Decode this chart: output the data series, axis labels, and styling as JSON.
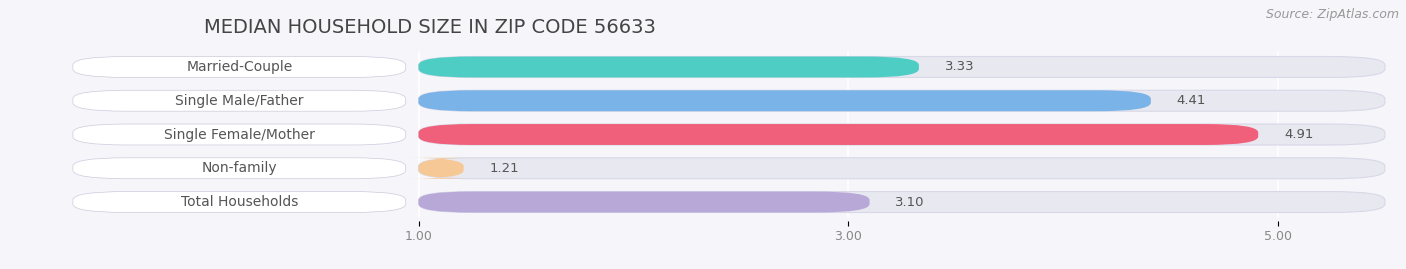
{
  "title": "MEDIAN HOUSEHOLD SIZE IN ZIP CODE 56633",
  "source": "Source: ZipAtlas.com",
  "categories": [
    "Married-Couple",
    "Single Male/Father",
    "Single Female/Mother",
    "Non-family",
    "Total Households"
  ],
  "values": [
    3.33,
    4.41,
    4.91,
    1.21,
    3.1
  ],
  "bar_colors": [
    "#4ecdc4",
    "#7ab3e8",
    "#f0607a",
    "#f5c896",
    "#b8a8d8"
  ],
  "bar_edge_colors": [
    "#3ab8b0",
    "#5a90c8",
    "#d04060",
    "#d8a870",
    "#9880b8"
  ],
  "xlim_min": 0.0,
  "xlim_max": 5.5,
  "data_min": 1.0,
  "xticks": [
    1.0,
    3.0,
    5.0
  ],
  "xtick_labels": [
    "1.00",
    "3.00",
    "5.00"
  ],
  "background_color": "#f5f5fa",
  "bar_track_color": "#e8e8f0",
  "bar_track_edge_color": "#d8d8e8",
  "label_bg_color": "#ffffff",
  "label_text_color": "#555555",
  "value_text_color": "#555555",
  "value_text_color_inside": "#ffffff",
  "title_fontsize": 14,
  "source_fontsize": 9,
  "label_fontsize": 10,
  "value_fontsize": 9.5,
  "bar_height": 0.62,
  "bar_gap": 0.38,
  "figsize": [
    14.06,
    2.69
  ],
  "dpi": 100
}
